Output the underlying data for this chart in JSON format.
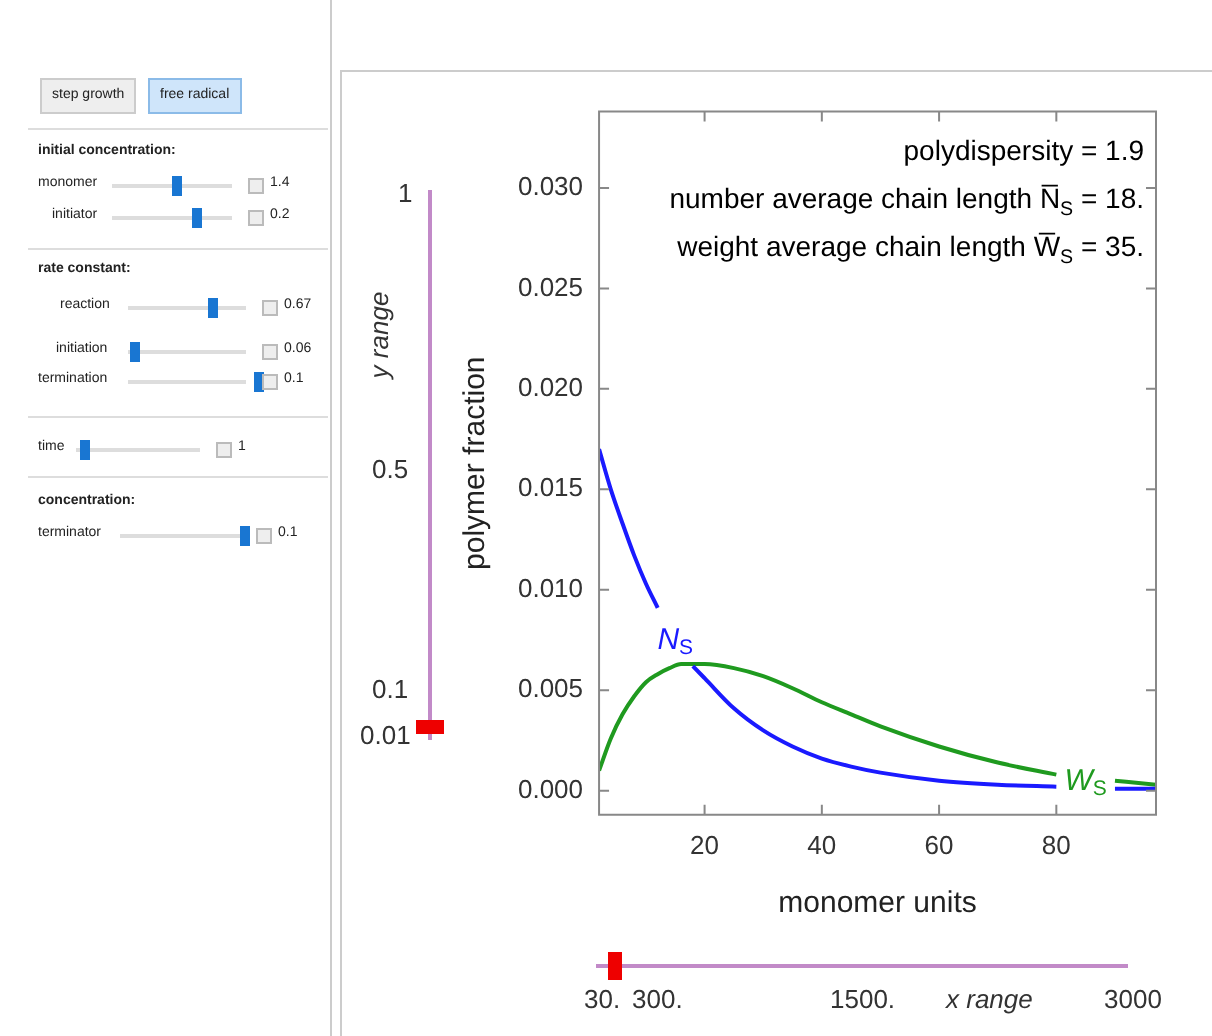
{
  "chart_data": {
    "type": "line",
    "xlabel": "monomer units",
    "ylabel": "polymer fraction",
    "x": [
      2,
      4,
      6,
      8,
      10,
      12,
      14,
      16,
      18,
      20,
      25,
      30,
      35,
      40,
      45,
      50,
      60,
      70,
      80,
      85,
      90,
      97
    ],
    "series": [
      {
        "name": "N$_{S}$",
        "color": "#1a1aff",
        "values": [
          0.017,
          0.015,
          0.0133,
          0.0117,
          0.0103,
          0.0091,
          null,
          null,
          0.0062,
          0.0056,
          0.0041,
          0.003,
          0.0022,
          0.0016,
          0.0012,
          0.0009,
          0.0005,
          0.0003,
          0.0002,
          null,
          0.0001,
          0.0001
        ]
      },
      {
        "name": "W$_{S}$",
        "color": "#1f9a1f",
        "values": [
          0.001,
          0.0026,
          0.0038,
          0.0047,
          0.0054,
          0.0058,
          0.0061,
          0.0063,
          0.0063,
          0.0063,
          0.0061,
          0.0057,
          0.0051,
          0.0044,
          0.0038,
          0.0032,
          0.0022,
          0.0014,
          0.0008,
          null,
          0.0005,
          0.0003
        ]
      }
    ],
    "xlim": [
      2,
      97
    ],
    "xticks": [
      20,
      40,
      60,
      80
    ],
    "ylim": [
      -0.0012,
      0.0338
    ],
    "yticks": [
      {
        "value": 0,
        "label": "0.000"
      },
      {
        "value": 0.005,
        "label": "0.005"
      },
      {
        "value": 0.01,
        "label": "0.010"
      },
      {
        "value": 0.015,
        "label": "0.015"
      },
      {
        "value": 0.02,
        "label": "0.020"
      },
      {
        "value": 0.025,
        "label": "0.025"
      },
      {
        "value": 0.03,
        "label": "0.030"
      }
    ],
    "grid": false,
    "legend": false,
    "marker": "none",
    "line_style": "solid",
    "annotations": [
      "polydispersity = 1.9",
      "number average chain length N̅$_{S}$ = 18.",
      "weight average chain length W̅$_{S}$ = 35.",
      "step growth",
      "free radical",
      "initial concentration:",
      "monomer",
      "1.4",
      "initiator",
      "0.2",
      "rate constant:",
      "reaction",
      "0.67",
      "initiation",
      "0.06",
      "termination",
      "0.1",
      "time",
      "1",
      "concentration:",
      "terminator",
      "0.1",
      "y range",
      "1",
      "0.5",
      "0.1",
      "0.01",
      "x range",
      "30.",
      "300.",
      "1500.",
      "3000"
    ]
  }
}
